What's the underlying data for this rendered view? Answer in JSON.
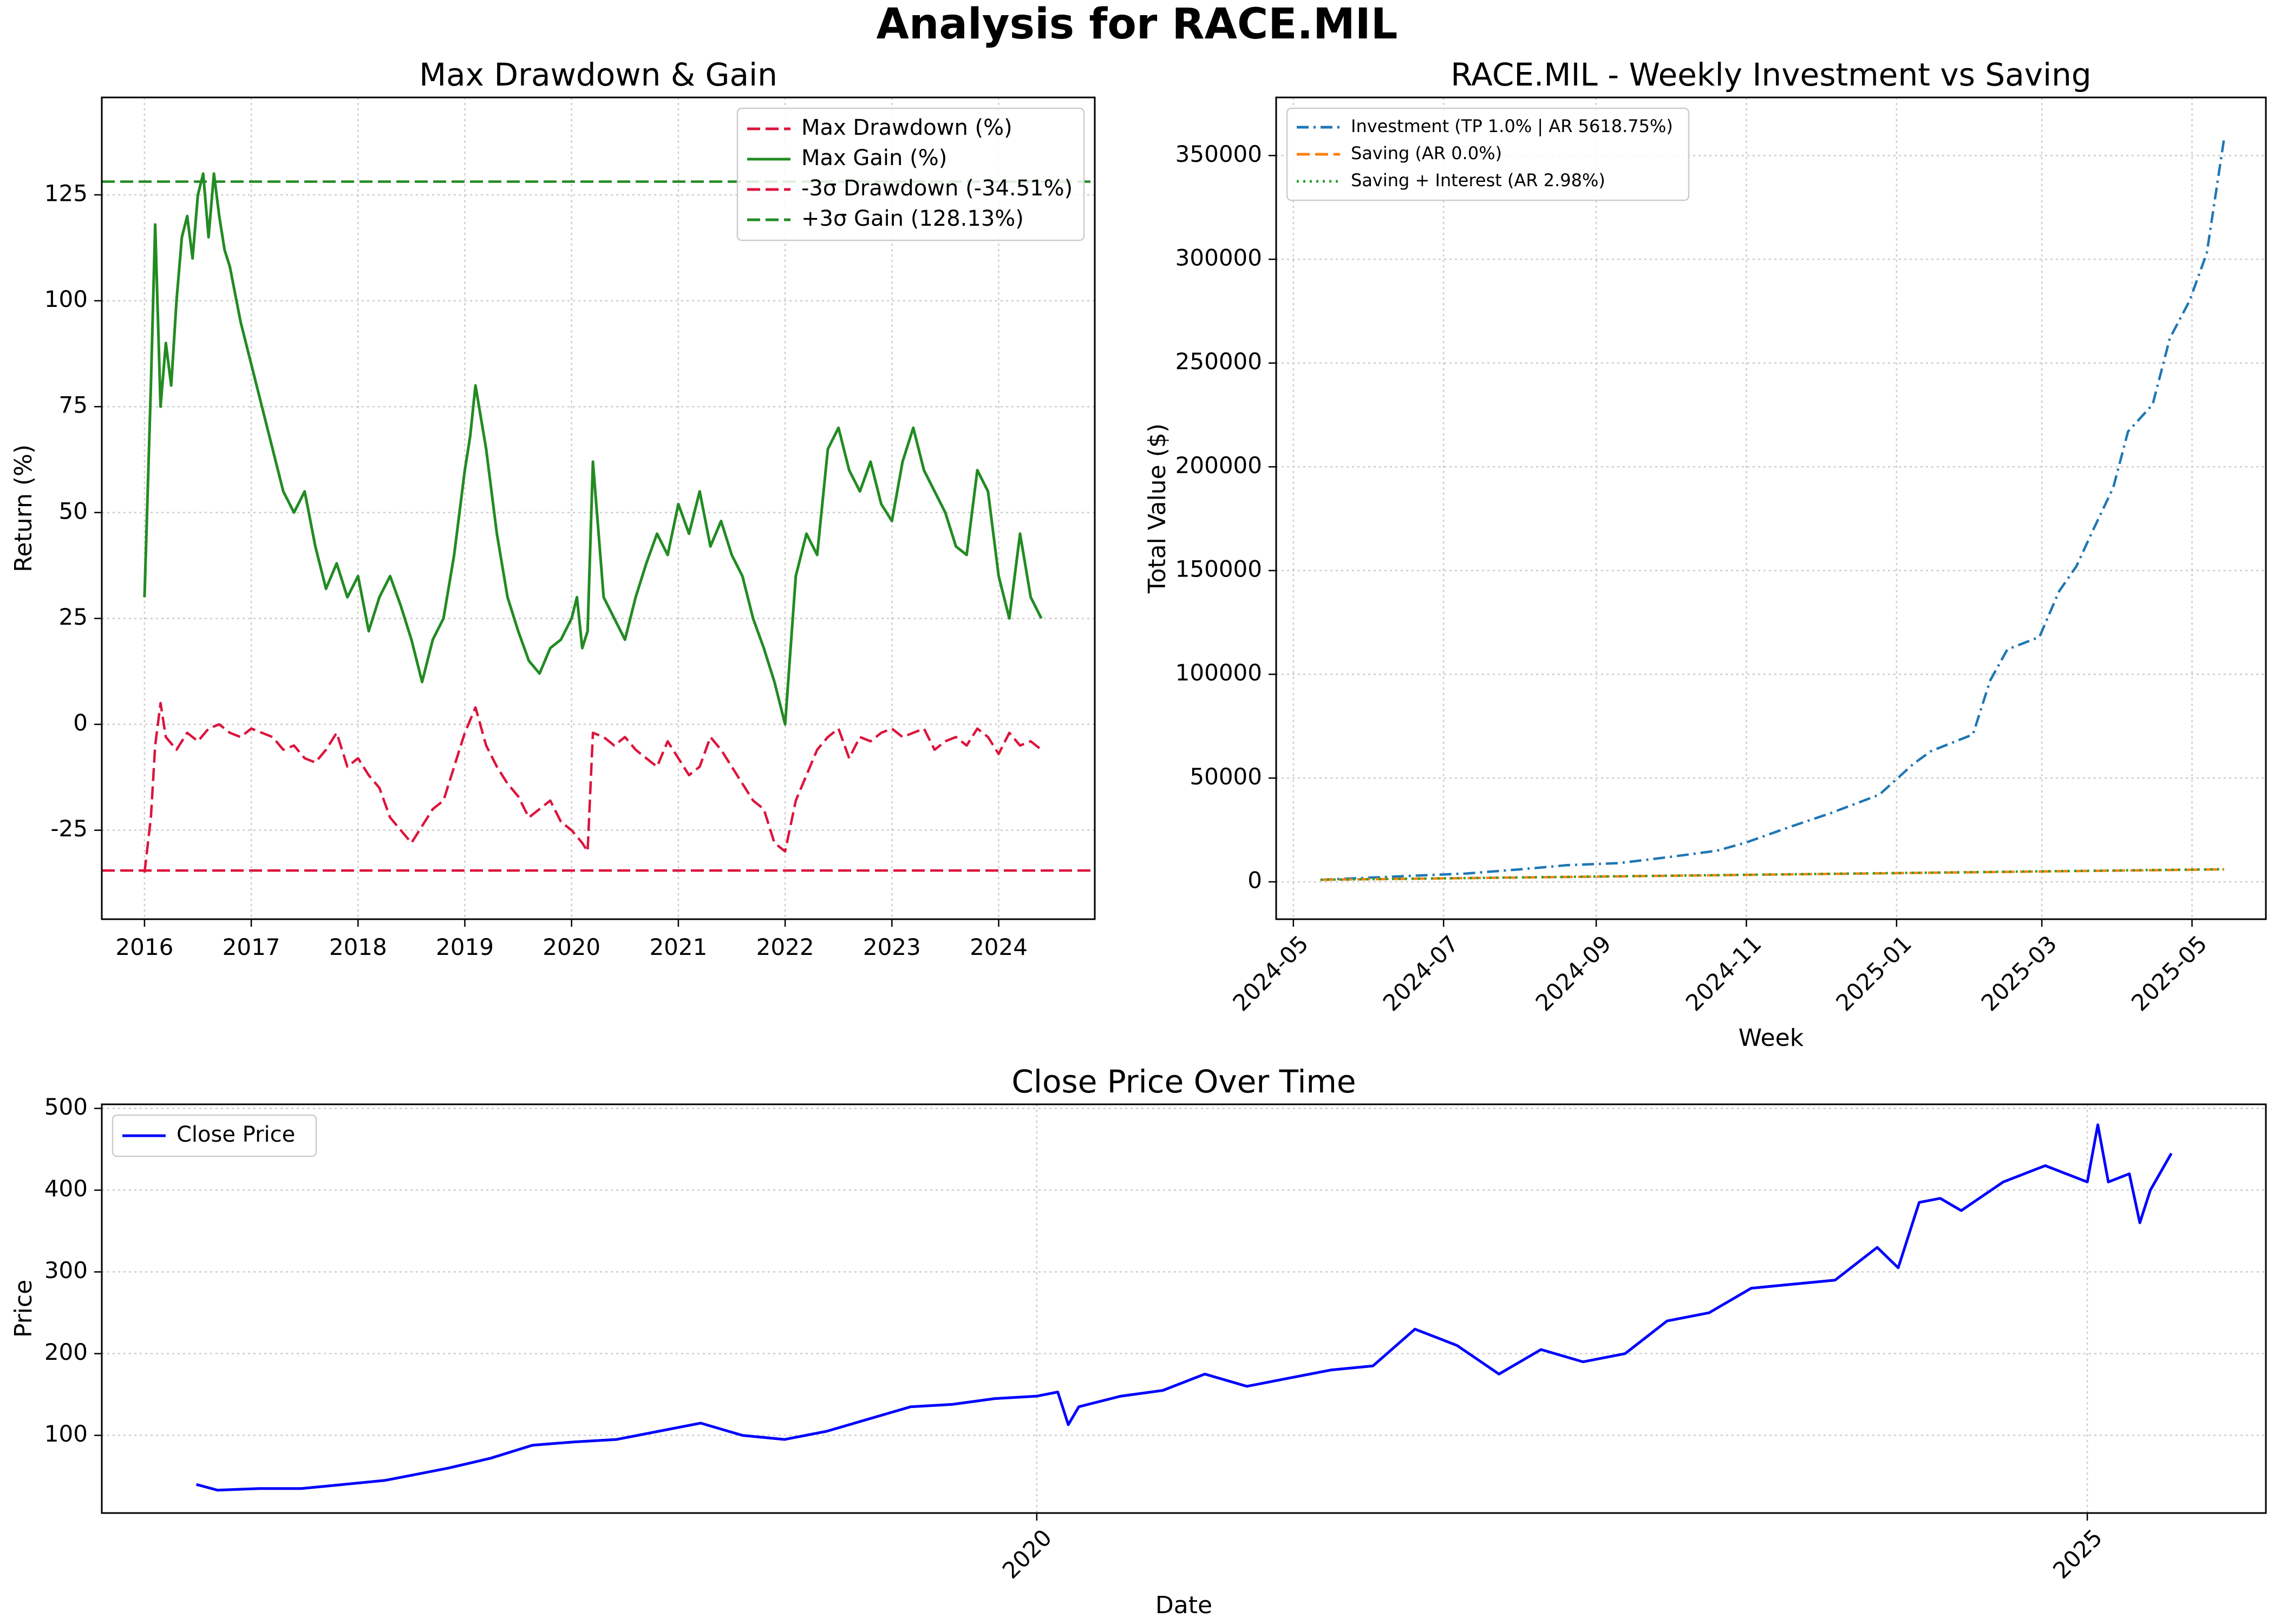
{
  "figure": {
    "suptitle": "Analysis for RACE.MIL"
  },
  "chart_data": [
    {
      "id": "drawdown",
      "type": "line",
      "title": "Max Drawdown & Gain",
      "xlabel": "",
      "ylabel": "Return (%)",
      "x_ticks": [
        "2016",
        "2017",
        "2018",
        "2019",
        "2020",
        "2021",
        "2022",
        "2023",
        "2024"
      ],
      "y_ticks": [
        -25,
        0,
        25,
        50,
        75,
        100,
        125
      ],
      "xlim": [
        2015.6,
        2024.9
      ],
      "ylim": [
        -46,
        148
      ],
      "grid": true,
      "legend_position": "top-right",
      "series": [
        {
          "name": "Max Drawdown (%)",
          "color": "#dc143c",
          "style": "dashed",
          "x": [
            2016.0,
            2016.06,
            2016.1,
            2016.15,
            2016.2,
            2016.3,
            2016.4,
            2016.5,
            2016.6,
            2016.7,
            2016.8,
            2016.9,
            2017.0,
            2017.1,
            2017.2,
            2017.3,
            2017.4,
            2017.5,
            2017.6,
            2017.7,
            2017.8,
            2017.9,
            2018.0,
            2018.1,
            2018.2,
            2018.3,
            2018.4,
            2018.5,
            2018.6,
            2018.7,
            2018.8,
            2018.9,
            2019.0,
            2019.1,
            2019.2,
            2019.3,
            2019.4,
            2019.5,
            2019.6,
            2019.7,
            2019.8,
            2019.9,
            2020.0,
            2020.1,
            2020.15,
            2020.2,
            2020.3,
            2020.4,
            2020.5,
            2020.6,
            2020.7,
            2020.8,
            2020.9,
            2021.0,
            2021.1,
            2021.2,
            2021.3,
            2021.4,
            2021.5,
            2021.6,
            2021.7,
            2021.8,
            2021.9,
            2022.0,
            2022.1,
            2022.2,
            2022.3,
            2022.4,
            2022.5,
            2022.6,
            2022.7,
            2022.8,
            2022.9,
            2023.0,
            2023.1,
            2023.2,
            2023.3,
            2023.4,
            2023.5,
            2023.6,
            2023.7,
            2023.8,
            2023.9,
            2024.0,
            2024.1,
            2024.2,
            2024.3,
            2024.4
          ],
          "y": [
            -35,
            -22,
            -5,
            5,
            -3,
            -6,
            -2,
            -4,
            -1,
            0,
            -2,
            -3,
            -1,
            -2,
            -3,
            -6,
            -5,
            -8,
            -9,
            -6,
            -2,
            -10,
            -8,
            -12,
            -15,
            -22,
            -25,
            -28,
            -24,
            -20,
            -18,
            -10,
            -2,
            4,
            -5,
            -10,
            -14,
            -17,
            -22,
            -20,
            -18,
            -23,
            -25,
            -28,
            -30,
            -2,
            -3,
            -5,
            -3,
            -6,
            -8,
            -10,
            -4,
            -8,
            -12,
            -10,
            -3,
            -6,
            -10,
            -14,
            -18,
            -20,
            -28,
            -30,
            -18,
            -12,
            -6,
            -3,
            -1,
            -8,
            -3,
            -4,
            -2,
            -1,
            -3,
            -2,
            -1,
            -6,
            -4,
            -3,
            -5,
            -1,
            -3,
            -7,
            -2,
            -5,
            -4,
            -6
          ]
        },
        {
          "name": "Max Gain (%)",
          "color": "#228b22",
          "style": "solid",
          "x": [
            2016.0,
            2016.03,
            2016.06,
            2016.1,
            2016.15,
            2016.2,
            2016.25,
            2016.3,
            2016.35,
            2016.4,
            2016.45,
            2016.5,
            2016.55,
            2016.6,
            2016.65,
            2016.7,
            2016.75,
            2016.8,
            2016.9,
            2017.0,
            2017.1,
            2017.2,
            2017.3,
            2017.4,
            2017.5,
            2017.6,
            2017.7,
            2017.8,
            2017.9,
            2018.0,
            2018.1,
            2018.2,
            2018.3,
            2018.4,
            2018.5,
            2018.6,
            2018.7,
            2018.8,
            2018.9,
            2019.0,
            2019.05,
            2019.1,
            2019.2,
            2019.3,
            2019.4,
            2019.5,
            2019.6,
            2019.7,
            2019.8,
            2019.9,
            2020.0,
            2020.05,
            2020.1,
            2020.15,
            2020.2,
            2020.3,
            2020.4,
            2020.5,
            2020.6,
            2020.7,
            2020.8,
            2020.9,
            2021.0,
            2021.1,
            2021.2,
            2021.3,
            2021.4,
            2021.5,
            2021.6,
            2021.7,
            2021.8,
            2021.9,
            2022.0,
            2022.1,
            2022.2,
            2022.3,
            2022.4,
            2022.5,
            2022.6,
            2022.7,
            2022.8,
            2022.9,
            2023.0,
            2023.1,
            2023.2,
            2023.3,
            2023.4,
            2023.5,
            2023.6,
            2023.7,
            2023.8,
            2023.9,
            2024.0,
            2024.1,
            2024.2,
            2024.3,
            2024.4
          ],
          "y": [
            30,
            55,
            80,
            118,
            75,
            90,
            80,
            100,
            115,
            120,
            110,
            125,
            130,
            115,
            130,
            120,
            112,
            108,
            95,
            85,
            75,
            65,
            55,
            50,
            55,
            42,
            32,
            38,
            30,
            35,
            22,
            30,
            35,
            28,
            20,
            10,
            20,
            25,
            40,
            60,
            68,
            80,
            65,
            45,
            30,
            22,
            15,
            12,
            18,
            20,
            25,
            30,
            18,
            22,
            62,
            30,
            25,
            20,
            30,
            38,
            45,
            40,
            52,
            45,
            55,
            42,
            48,
            40,
            35,
            25,
            18,
            10,
            0,
            35,
            45,
            40,
            65,
            70,
            60,
            55,
            62,
            52,
            48,
            62,
            70,
            60,
            55,
            50,
            42,
            40,
            60,
            55,
            35,
            25,
            45,
            30,
            25
          ]
        },
        {
          "name": "-3σ Drawdown (-34.51%)",
          "color": "#dc143c",
          "style": "dashed",
          "hline": -34.51
        },
        {
          "name": "+3σ Gain (128.13%)",
          "color": "#228b22",
          "style": "dashed",
          "hline": 128.13
        }
      ]
    },
    {
      "id": "investment",
      "type": "line",
      "title": "RACE.MIL - Weekly Investment vs Saving",
      "xlabel": "Week",
      "ylabel": "Total Value ($)",
      "x_ticks": [
        "2024-05",
        "2024-07",
        "2024-09",
        "2024-11",
        "2025-01",
        "2025-03",
        "2025-05"
      ],
      "x_tick_values": [
        "2024-05-01",
        "2024-07-01",
        "2024-09-01",
        "2024-11-01",
        "2025-01-01",
        "2025-03-01",
        "2025-05-01"
      ],
      "y_ticks": [
        0,
        50000,
        100000,
        150000,
        200000,
        250000,
        300000,
        350000
      ],
      "xlim": [
        "2024-04-24",
        "2025-05-31"
      ],
      "ylim": [
        -18000,
        378000
      ],
      "grid": true,
      "legend_position": "top-left",
      "series": [
        {
          "name": "Investment (TP 1.0% | AR 5618.75%)",
          "color": "#1f77b4",
          "style": "dashdot",
          "x": [
            "2024-05-12",
            "2024-06-01",
            "2024-06-20",
            "2024-07-10",
            "2024-08-01",
            "2024-08-20",
            "2024-09-10",
            "2024-10-01",
            "2024-10-20",
            "2024-11-01",
            "2024-11-20",
            "2024-12-05",
            "2024-12-25",
            "2025-01-08",
            "2025-01-15",
            "2025-02-01",
            "2025-02-08",
            "2025-02-15",
            "2025-02-28",
            "2025-03-08",
            "2025-03-15",
            "2025-03-22",
            "2025-03-30",
            "2025-04-05",
            "2025-04-15",
            "2025-04-22",
            "2025-04-30",
            "2025-05-07",
            "2025-05-14"
          ],
          "y": [
            1000,
            2000,
            3000,
            4000,
            6000,
            8000,
            9000,
            12000,
            15000,
            19000,
            27000,
            33000,
            42000,
            57000,
            63000,
            71000,
            97000,
            112000,
            118000,
            140000,
            152000,
            170000,
            190000,
            217000,
            230000,
            262000,
            280000,
            303000,
            358000
          ]
        },
        {
          "name": "Saving (AR 0.0%)",
          "color": "#ff7f0e",
          "style": "dashed",
          "x": [
            "2024-05-12",
            "2025-05-14"
          ],
          "y": [
            1000,
            6000
          ]
        },
        {
          "name": "Saving + Interest (AR 2.98%)",
          "color": "#2ca02c",
          "style": "dotted",
          "x": [
            "2024-05-12",
            "2025-05-14"
          ],
          "y": [
            1000,
            6100
          ]
        }
      ]
    },
    {
      "id": "close",
      "type": "line",
      "title": "Close Price Over Time",
      "xlabel": "Date",
      "ylabel": "Price",
      "x_ticks": [
        "2020",
        "2025"
      ],
      "y_ticks": [
        100,
        200,
        300,
        400,
        500
      ],
      "xlim": [
        2015.55,
        2025.85
      ],
      "ylim": [
        5,
        505
      ],
      "grid": true,
      "legend_position": "top-left",
      "series": [
        {
          "name": "Close Price",
          "color": "#0000ff",
          "style": "solid",
          "x": [
            2016.0,
            2016.1,
            2016.3,
            2016.5,
            2016.7,
            2016.9,
            2017.0,
            2017.2,
            2017.4,
            2017.6,
            2017.8,
            2018.0,
            2018.2,
            2018.4,
            2018.6,
            2018.8,
            2019.0,
            2019.2,
            2019.4,
            2019.6,
            2019.8,
            2020.0,
            2020.1,
            2020.15,
            2020.2,
            2020.4,
            2020.6,
            2020.8,
            2021.0,
            2021.2,
            2021.4,
            2021.6,
            2021.8,
            2022.0,
            2022.2,
            2022.4,
            2022.6,
            2022.8,
            2023.0,
            2023.2,
            2023.4,
            2023.6,
            2023.8,
            2024.0,
            2024.1,
            2024.2,
            2024.3,
            2024.4,
            2024.6,
            2024.8,
            2025.0,
            2025.05,
            2025.1,
            2025.2,
            2025.25,
            2025.3,
            2025.4
          ],
          "y": [
            40,
            33,
            35,
            35,
            40,
            45,
            50,
            60,
            72,
            88,
            92,
            95,
            105,
            115,
            100,
            95,
            105,
            120,
            135,
            138,
            145,
            148,
            153,
            113,
            135,
            148,
            155,
            175,
            160,
            170,
            180,
            185,
            230,
            210,
            175,
            205,
            190,
            200,
            240,
            250,
            280,
            285,
            290,
            330,
            305,
            385,
            390,
            375,
            410,
            430,
            410,
            480,
            410,
            420,
            360,
            400,
            445
          ]
        }
      ]
    }
  ]
}
